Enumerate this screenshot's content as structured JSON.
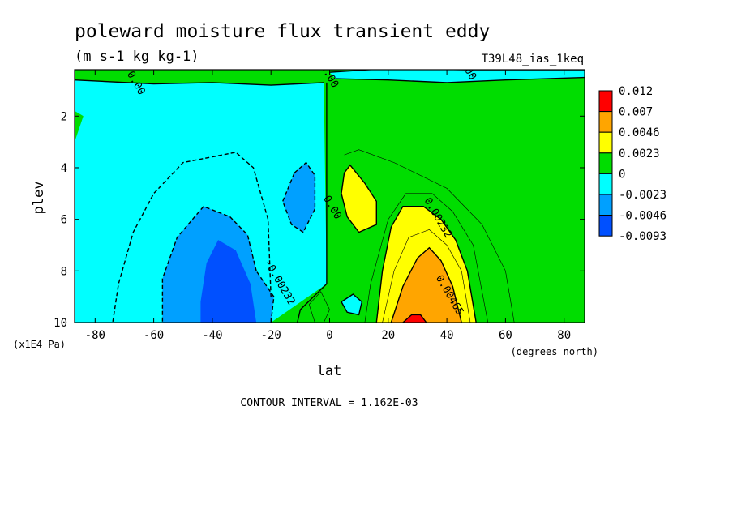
{
  "chart_data": {
    "type": "heatmap",
    "title": "poleward moisture flux transient eddy",
    "subtitle": "(m s-1 kg kg-1)",
    "run_label": "T39L48_ias_1keq",
    "xlabel": "lat",
    "x_units": "(degrees_north)",
    "ylabel": "plev",
    "y_units": "(x1E4 Pa)",
    "xlim": [
      -87,
      87
    ],
    "ylim": [
      10,
      0.2
    ],
    "x_ticks": [
      -80,
      -60,
      -40,
      -20,
      0,
      20,
      40,
      60,
      80
    ],
    "y_ticks": [
      2,
      4,
      6,
      8,
      10
    ],
    "grid": false,
    "legend": "right",
    "footer": "CONTOUR INTERVAL = 1.162E-03",
    "colors": {
      "c_pos4": "#ff0000",
      "c_pos3": "#ffa500",
      "c_pos2": "#ffff00",
      "c_pos1": "#00dd00",
      "c_neg1": "#00ffff",
      "c_neg2": "#00a0ff",
      "c_neg3": "#0050ff"
    },
    "colorbar": {
      "labels": [
        "0.012",
        "0.007",
        "0.0046",
        "0.0023",
        "0",
        "-0.0023",
        "-0.0046",
        "-0.0093"
      ],
      "colors": [
        "#ff0000",
        "#ffa500",
        "#ffff00",
        "#00dd00",
        "#00ffff",
        "#00a0ff",
        "#0050ff"
      ]
    },
    "contour_labels": [
      {
        "text": "0.00",
        "x": -67,
        "y": 0.78
      },
      {
        "text": "0.00",
        "x": -1,
        "y": 0.5
      },
      {
        "text": "0.00",
        "x": 46,
        "y": 0.2
      },
      {
        "text": "0.00",
        "x": 0,
        "y": 5.6
      },
      {
        "text": "-0.00232",
        "x": -18,
        "y": 8.5
      },
      {
        "text": "0.00232",
        "x": 36,
        "y": 6.0
      },
      {
        "text": "0.00465",
        "x": 40,
        "y": 9.0
      }
    ],
    "regions": [
      {
        "color": "c_neg1",
        "points": [
          [
            -87,
            0.6
          ],
          [
            -60,
            0.75
          ],
          [
            -40,
            0.7
          ],
          [
            -20,
            0.8
          ],
          [
            -2,
            0.7
          ],
          [
            -1,
            8.5
          ],
          [
            -20,
            10
          ],
          [
            -87,
            10
          ]
        ]
      },
      {
        "color": "c_pos1",
        "points": [
          [
            -87,
            1.8
          ],
          [
            -84,
            2
          ],
          [
            -87,
            3
          ]
        ]
      },
      {
        "color": "c_neg1",
        "points": [
          [
            0,
            0.3
          ],
          [
            20,
            0.15
          ],
          [
            46,
            0.2
          ],
          [
            87,
            0.2
          ],
          [
            87,
            0.5
          ],
          [
            60,
            0.6
          ],
          [
            40,
            0.7
          ],
          [
            20,
            0.6
          ],
          [
            2,
            0.55
          ]
        ]
      },
      {
        "color": "c_neg2",
        "points": [
          [
            -25,
            8
          ],
          [
            -28,
            6.6
          ],
          [
            -34,
            5.9
          ],
          [
            -43,
            5.5
          ],
          [
            -52,
            6.7
          ],
          [
            -57,
            8.3
          ],
          [
            -57,
            10
          ],
          [
            -20,
            10
          ],
          [
            -19,
            9
          ]
        ]
      },
      {
        "color": "c_neg3",
        "points": [
          [
            -25,
            10
          ],
          [
            -27,
            8.5
          ],
          [
            -32,
            7.2
          ],
          [
            -38,
            6.8
          ],
          [
            -42,
            7.7
          ],
          [
            -44,
            9.2
          ],
          [
            -44,
            10
          ]
        ]
      },
      {
        "color": "c_neg2",
        "points": [
          [
            -12,
            4.2
          ],
          [
            -8,
            3.8
          ],
          [
            -5,
            4.3
          ],
          [
            -5,
            5.6
          ],
          [
            -9,
            6.5
          ],
          [
            -13,
            6.2
          ],
          [
            -16,
            5.3
          ]
        ]
      },
      {
        "color": "c_neg1",
        "points": [
          [
            4,
            9.2
          ],
          [
            8,
            8.9
          ],
          [
            11,
            9.2
          ],
          [
            10,
            9.7
          ],
          [
            6,
            9.6
          ]
        ]
      },
      {
        "color": "c_pos2",
        "points": [
          [
            5,
            4.2
          ],
          [
            7,
            3.9
          ],
          [
            12,
            4.6
          ],
          [
            16,
            5.3
          ],
          [
            16,
            6.2
          ],
          [
            10,
            6.5
          ],
          [
            6,
            5.9
          ],
          [
            4,
            5
          ]
        ]
      },
      {
        "color": "c_pos2",
        "points": [
          [
            16,
            10
          ],
          [
            18,
            8
          ],
          [
            21,
            6.3
          ],
          [
            25,
            5.5
          ],
          [
            32,
            5.5
          ],
          [
            38,
            6
          ],
          [
            43,
            6.8
          ],
          [
            47,
            8
          ],
          [
            50,
            10
          ]
        ]
      },
      {
        "color": "c_pos3",
        "points": [
          [
            21,
            10
          ],
          [
            25,
            8.6
          ],
          [
            30,
            7.5
          ],
          [
            34,
            7.1
          ],
          [
            38,
            7.6
          ],
          [
            42,
            8.6
          ],
          [
            45,
            10
          ]
        ]
      },
      {
        "color": "c_pos4",
        "points": [
          [
            25,
            10
          ],
          [
            28,
            9.7
          ],
          [
            31,
            9.7
          ],
          [
            33,
            10
          ]
        ]
      }
    ],
    "contours": [
      {
        "dash": false,
        "points": [
          [
            -87,
            0.6
          ],
          [
            -60,
            0.75
          ],
          [
            -40,
            0.7
          ],
          [
            -20,
            0.8
          ],
          [
            -2,
            0.7
          ]
        ]
      },
      {
        "dash": false,
        "points": [
          [
            -1,
            0.7
          ],
          [
            -1,
            8.5
          ]
        ]
      },
      {
        "dash": false,
        "points": [
          [
            2,
            0.55
          ],
          [
            20,
            0.6
          ],
          [
            40,
            0.7
          ],
          [
            60,
            0.6
          ],
          [
            87,
            0.5
          ]
        ]
      },
      {
        "dash": false,
        "points": [
          [
            0,
            0.3
          ],
          [
            20,
            0.15
          ],
          [
            46,
            0.2
          ],
          [
            87,
            0.2
          ]
        ]
      },
      {
        "dash": true,
        "points": [
          [
            -25,
            8
          ],
          [
            -28,
            6.6
          ],
          [
            -34,
            5.9
          ],
          [
            -43,
            5.5
          ],
          [
            -52,
            6.7
          ],
          [
            -57,
            8.3
          ],
          [
            -57,
            10
          ]
        ]
      },
      {
        "dash": true,
        "points": [
          [
            -20,
            10
          ],
          [
            -19,
            9
          ],
          [
            -25,
            8
          ]
        ]
      },
      {
        "dash": true,
        "points": [
          [
            -12,
            4.2
          ],
          [
            -8,
            3.8
          ],
          [
            -5,
            4.3
          ],
          [
            -5,
            5.6
          ],
          [
            -9,
            6.5
          ],
          [
            -13,
            6.2
          ],
          [
            -16,
            5.3
          ],
          [
            -12,
            4.2
          ]
        ]
      },
      {
        "dash": true,
        "points": [
          [
            -20,
            9
          ],
          [
            -21,
            6
          ],
          [
            -26,
            4
          ],
          [
            -32,
            3.4
          ],
          [
            -50,
            3.8
          ],
          [
            -60,
            5
          ],
          [
            -67,
            6.5
          ],
          [
            -72,
            8.5
          ],
          [
            -74,
            10
          ]
        ]
      },
      {
        "dash": false,
        "points": [
          [
            5,
            4.2
          ],
          [
            7,
            3.9
          ],
          [
            12,
            4.6
          ],
          [
            16,
            5.3
          ],
          [
            16,
            6.2
          ],
          [
            10,
            6.5
          ],
          [
            6,
            5.9
          ],
          [
            4,
            5
          ],
          [
            5,
            4.2
          ]
        ]
      },
      {
        "dash": false,
        "points": [
          [
            16,
            10
          ],
          [
            18,
            8
          ],
          [
            21,
            6.3
          ],
          [
            25,
            5.5
          ],
          [
            32,
            5.5
          ],
          [
            38,
            6
          ],
          [
            43,
            6.8
          ],
          [
            47,
            8
          ],
          [
            50,
            10
          ]
        ]
      },
      {
        "dash": false,
        "points": [
          [
            21,
            10
          ],
          [
            25,
            8.6
          ],
          [
            30,
            7.5
          ],
          [
            34,
            7.1
          ],
          [
            38,
            7.6
          ],
          [
            42,
            8.6
          ],
          [
            45,
            10
          ]
        ]
      },
      {
        "dash": false,
        "points": [
          [
            4,
            9.2
          ],
          [
            8,
            8.9
          ],
          [
            11,
            9.2
          ],
          [
            10,
            9.7
          ],
          [
            6,
            9.6
          ],
          [
            4,
            9.2
          ]
        ]
      },
      {
        "dash": false,
        "points": [
          [
            25,
            10
          ],
          [
            28,
            9.7
          ],
          [
            31,
            9.7
          ],
          [
            33,
            10
          ]
        ]
      },
      {
        "dash": false,
        "points": [
          [
            -1,
            8.5
          ],
          [
            -10,
            9.5
          ],
          [
            -11,
            10
          ]
        ]
      }
    ],
    "thin_contours": [
      {
        "points": [
          [
            5,
            3.5
          ],
          [
            10,
            3.3
          ],
          [
            22,
            3.8
          ],
          [
            40,
            4.8
          ],
          [
            52,
            6.2
          ],
          [
            60,
            8
          ],
          [
            63,
            10
          ]
        ]
      },
      {
        "points": [
          [
            12,
            10
          ],
          [
            14,
            8.5
          ],
          [
            20,
            6
          ],
          [
            26,
            5
          ],
          [
            35,
            5
          ],
          [
            42,
            5.7
          ],
          [
            49,
            7
          ],
          [
            54,
            10
          ]
        ]
      },
      {
        "points": [
          [
            18,
            10
          ],
          [
            22,
            8
          ],
          [
            27,
            6.7
          ],
          [
            34,
            6.4
          ],
          [
            40,
            7
          ],
          [
            45,
            8
          ],
          [
            48,
            10
          ]
        ]
      },
      {
        "points": [
          [
            -5,
            10
          ],
          [
            -7,
            9.3
          ],
          [
            -3,
            8.8
          ],
          [
            0,
            9.5
          ],
          [
            -2,
            10
          ]
        ]
      }
    ]
  }
}
